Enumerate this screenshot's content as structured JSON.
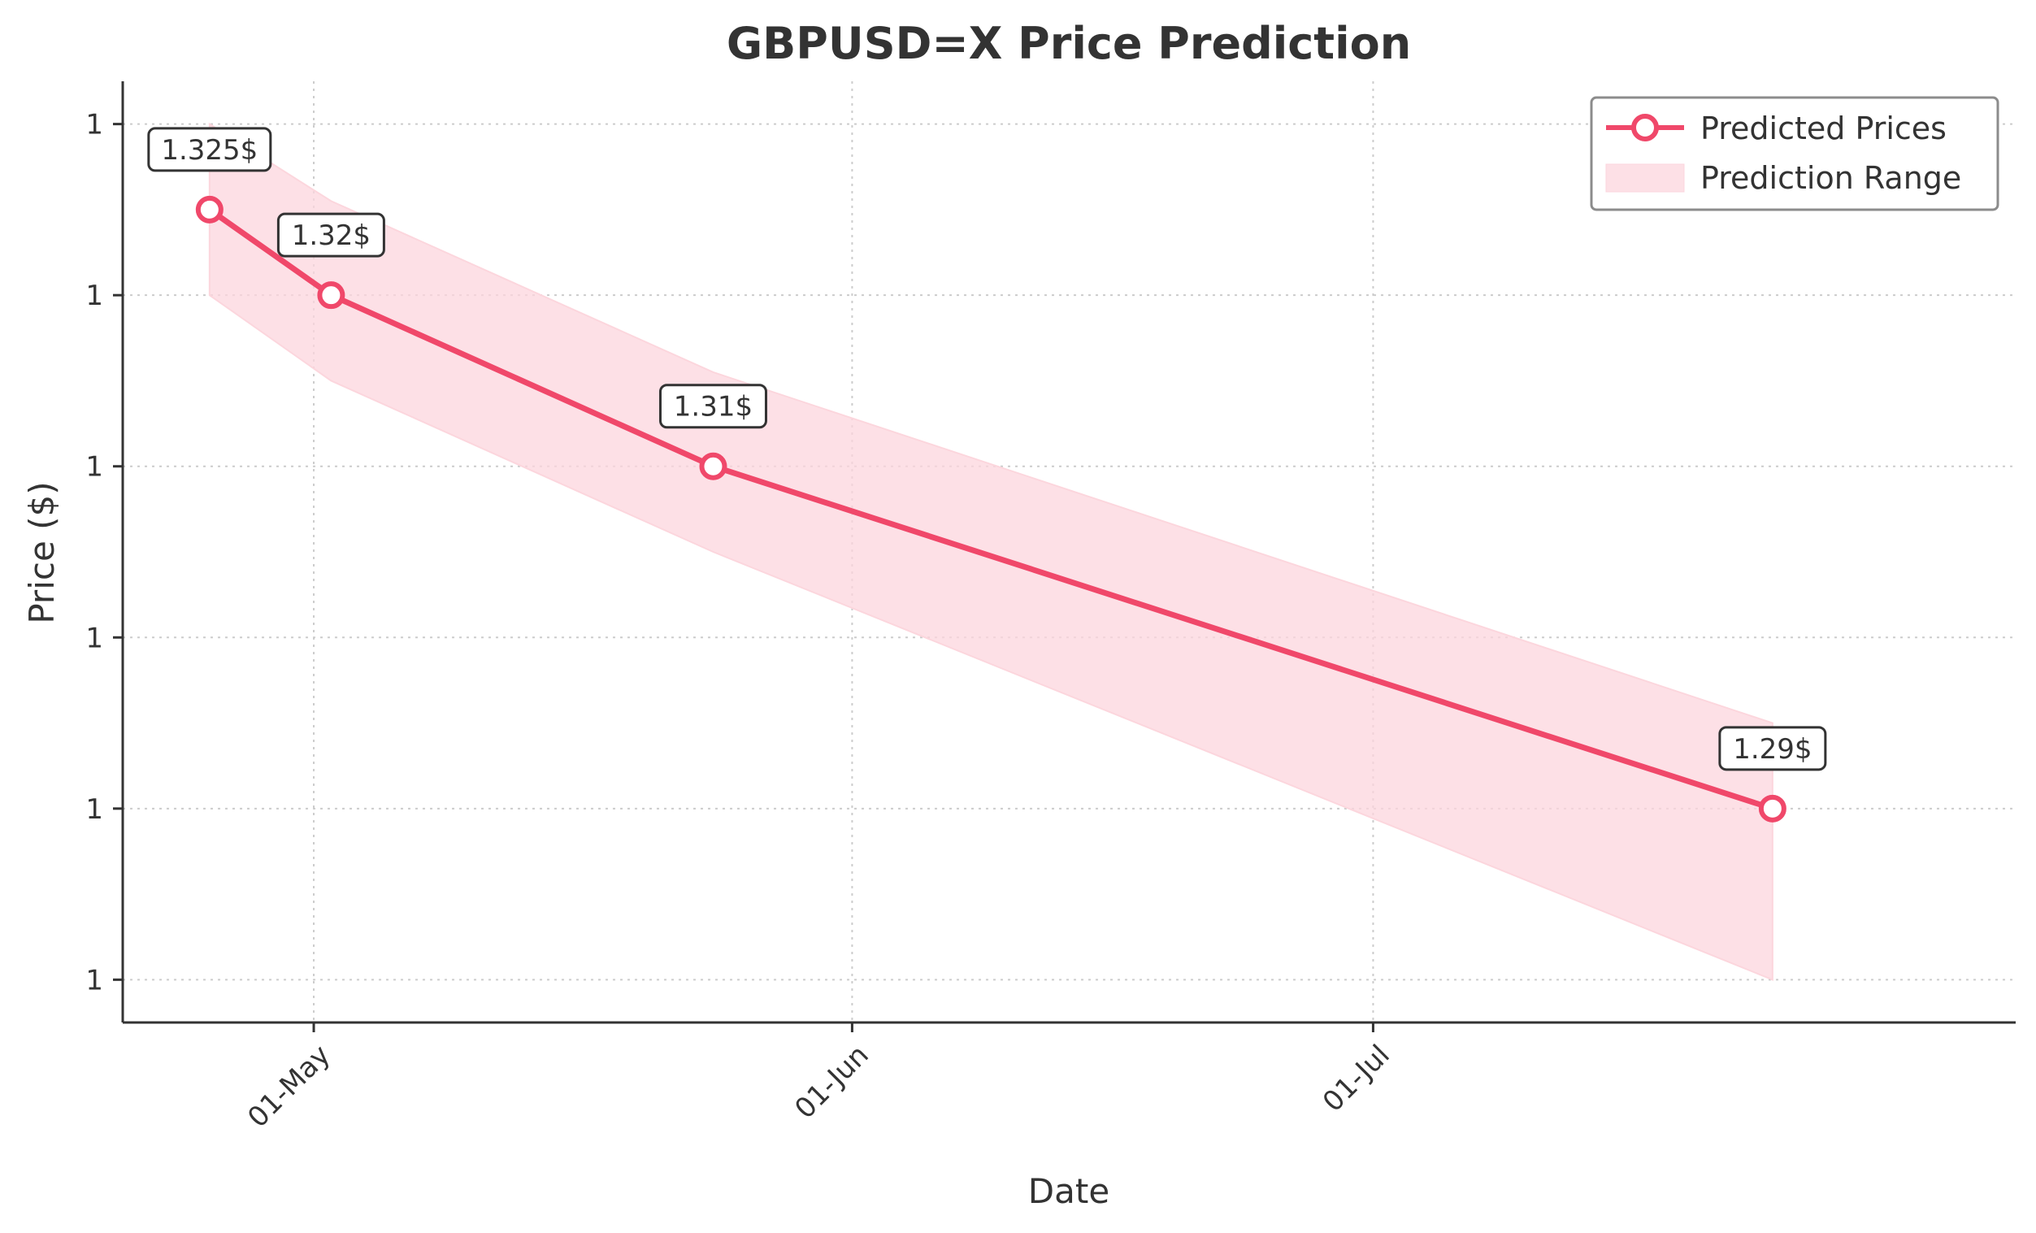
{
  "chart_data": {
    "type": "line",
    "title": "GBPUSD=X Price Prediction",
    "xlabel": "Date",
    "ylabel": "Price ($)",
    "x_ticks": [
      {
        "date": "2025-05-01",
        "label": "01-May"
      },
      {
        "date": "2025-06-01",
        "label": "01-Jun"
      },
      {
        "date": "2025-07-01",
        "label": "01-Jul"
      }
    ],
    "y_ticks": [
      {
        "value": 1.275,
        "label": "1"
      },
      {
        "value": 1.285,
        "label": "1"
      },
      {
        "value": 1.295,
        "label": "1"
      },
      {
        "value": 1.305,
        "label": "1"
      },
      {
        "value": 1.315,
        "label": "1"
      },
      {
        "value": 1.325,
        "label": "1"
      }
    ],
    "xlim": [
      "2025-04-20",
      "2025-08-07"
    ],
    "ylim": [
      1.2725,
      1.3275
    ],
    "series": [
      {
        "name": "Predicted Prices",
        "color": "#f0486a",
        "points": [
          {
            "date": "2025-04-25",
            "value": 1.32,
            "label": "1.325$"
          },
          {
            "date": "2025-05-02",
            "value": 1.315,
            "label": "1.32$"
          },
          {
            "date": "2025-05-24",
            "value": 1.305,
            "label": "1.31$"
          },
          {
            "date": "2025-07-24",
            "value": 1.285,
            "label": "1.29$"
          }
        ]
      }
    ],
    "range": {
      "name": "Prediction Range",
      "color": "#fcd6dd",
      "upper": [
        {
          "date": "2025-04-25",
          "value": 1.325
        },
        {
          "date": "2025-05-02",
          "value": 1.3205
        },
        {
          "date": "2025-05-24",
          "value": 1.3105
        },
        {
          "date": "2025-07-24",
          "value": 1.29
        }
      ],
      "lower": [
        {
          "date": "2025-04-25",
          "value": 1.315
        },
        {
          "date": "2025-05-02",
          "value": 1.31
        },
        {
          "date": "2025-05-24",
          "value": 1.3
        },
        {
          "date": "2025-07-24",
          "value": 1.275
        }
      ]
    },
    "grid": true,
    "legend": "top-right"
  }
}
